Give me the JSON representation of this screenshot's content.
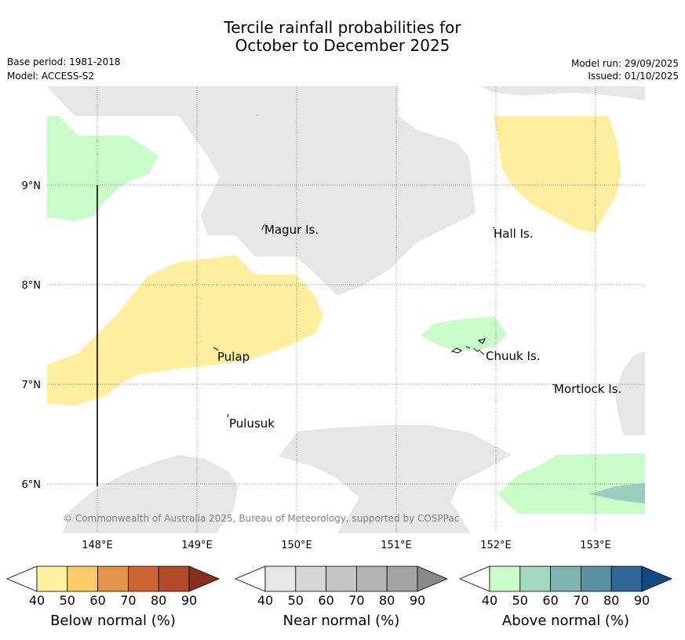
{
  "title": {
    "line1": "Tercile rainfall probabilities for",
    "line2": "October to December 2025"
  },
  "meta": {
    "base_period": "Base period: 1981-2018",
    "model": "Model: ACCESS-S2",
    "model_run": "Model run: 29/09/2025",
    "issued": "Issued: 01/10/2025"
  },
  "map": {
    "lon_labels": [
      "148°E",
      "149°E",
      "150°E",
      "151°E",
      "152°E",
      "153°E"
    ],
    "lat_labels": [
      "9°N",
      "8°N",
      "7°N",
      "6°N"
    ],
    "places": [
      "Magur Is.",
      "Hall Is.",
      "Pulap",
      "Chuuk Is.",
      "Mortlock Is.",
      "Pulusuk"
    ],
    "copyright": "© Commonwealth of Australia 2025, Bureau of Meteorology, supported by COSPPac"
  },
  "legend": {
    "below": {
      "label": "Below normal (%)",
      "ticks": [
        "40",
        "50",
        "60",
        "70",
        "80",
        "90"
      ],
      "colors": [
        "#fff0a0",
        "#fdcb65",
        "#e1954a",
        "#cc6333",
        "#b04c28",
        "#8a2d1a"
      ]
    },
    "near": {
      "label": "Near normal (%)",
      "ticks": [
        "40",
        "50",
        "60",
        "70",
        "80",
        "90"
      ],
      "colors": [
        "#e6e6e6",
        "#d6d6d6",
        "#c4c4c4",
        "#b3b3b3",
        "#a3a3a3",
        "#8a8a8a"
      ]
    },
    "above": {
      "label": "Above normal (%)",
      "ticks": [
        "40",
        "50",
        "60",
        "70",
        "80",
        "90"
      ],
      "colors": [
        "#c9fcc8",
        "#a4d7bf",
        "#7fb3af",
        "#5991a0",
        "#326699",
        "#134a84"
      ]
    }
  },
  "colors": {
    "yellow": "#ffeda0",
    "green": "#c9fcc8",
    "grey": "#e6e6e6",
    "teal": "#9ccbbf"
  }
}
